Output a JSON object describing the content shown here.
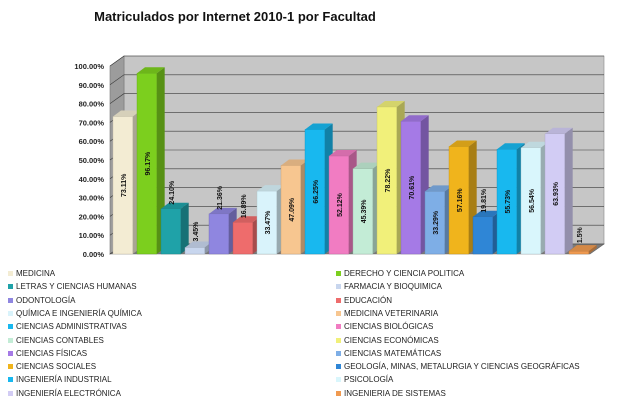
{
  "chart_data": {
    "type": "bar",
    "title": "Matriculados por Internet 2010-1 por Facultad",
    "ylim": [
      0,
      100
    ],
    "yticks": [
      "0.00%",
      "10.00%",
      "20.00%",
      "30.00%",
      "40.00%",
      "50.00%",
      "60.00%",
      "70.00%",
      "80.00%",
      "90.00%",
      "100.00%"
    ],
    "grid": true,
    "legend_position": "bottom",
    "categories": [
      "MEDICINA",
      "DERECHO Y CIENCIA POLITICA",
      "LETRAS Y CIENCIAS HUMANAS",
      "FARMACIA Y BIOQUIMICA",
      "ODONTOLOGÍA",
      "EDUCACIÓN",
      "QUÍMICA E INGENIERÍA QUÍMICA",
      "MEDICINA VETERINARIA",
      "CIENCIAS ADMINISTRATIVAS",
      "CIENCIAS BIOLÓGICAS",
      "CIENCIAS CONTABLES",
      "CIENCIAS ECONÓMICAS",
      "CIENCIAS FÍSICAS",
      "CIENCIAS MATEMÁTICAS",
      "CIENCIAS SOCIALES",
      "GEOLOGÍA, MINAS, METALURGIA Y CIENCIAS GEOGRÁFICAS",
      "INGENIERÍA INDUSTRIAL",
      "PSICOLOGÍA",
      "INGENIERÍA ELECTRÓNICA",
      "INGENIERIA DE SISTEMAS"
    ],
    "values": [
      73.11,
      96.17,
      24.1,
      3.45,
      21.36,
      16.89,
      33.47,
      47.09,
      66.25,
      52.12,
      45.39,
      78.22,
      70.61,
      33.29,
      57.16,
      19.81,
      55.73,
      56.54,
      63.93,
      1.5
    ],
    "data_labels": [
      "73.11%",
      "96.17%",
      "24.10%",
      "3.45%",
      "21.36%",
      "16.89%",
      "33.47%",
      "47.09%",
      "66.25%",
      "52.12%",
      "45.39%",
      "78.22%",
      "70.61%",
      "33.29%",
      "57.16%",
      "19.81%",
      "55.73%",
      "56.54%",
      "63.93%",
      "1.5%"
    ],
    "colors": [
      "#f3ecd3",
      "#7ccf1e",
      "#1fa2a8",
      "#c8d6ee",
      "#8f86e0",
      "#ee6c6c",
      "#d9f3fb",
      "#f7c690",
      "#18b8ef",
      "#f17cc2",
      "#c3ecd6",
      "#f1f07a",
      "#a57ae6",
      "#7eaee6",
      "#f0b41c",
      "#2f86d6",
      "#18b8ef",
      "#d9f6fc",
      "#d2ccf4",
      "#f09a50"
    ]
  }
}
